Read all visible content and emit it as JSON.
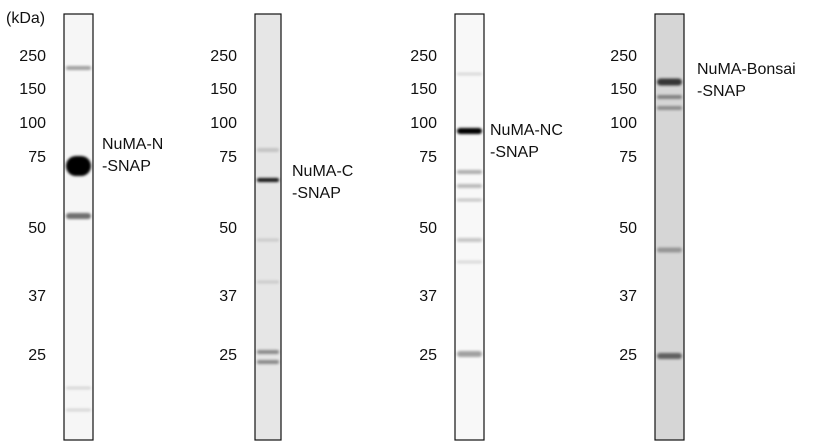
{
  "unit_label": "(kDa)",
  "panels": [
    {
      "markers": [
        "250",
        "150",
        "100",
        "75",
        "50",
        "37",
        "25"
      ],
      "label": [
        "NuMA-N",
        "-SNAP"
      ]
    },
    {
      "markers": [
        "250",
        "150",
        "100",
        "75",
        "50",
        "37",
        "25"
      ],
      "label": [
        "NuMA-C",
        "-SNAP"
      ]
    },
    {
      "markers": [
        "250",
        "150",
        "100",
        "75",
        "50",
        "37",
        "25"
      ],
      "label": [
        "NuMA-NC",
        "-SNAP"
      ]
    },
    {
      "markers": [
        "250",
        "150",
        "100",
        "75",
        "50",
        "37",
        "25"
      ],
      "label": [
        "NuMA-Bonsai",
        "-SNAP"
      ]
    }
  ]
}
